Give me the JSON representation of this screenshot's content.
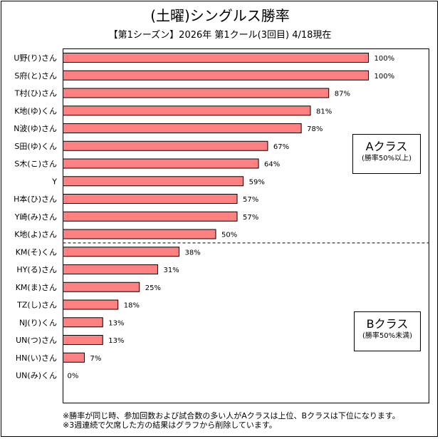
{
  "chart_data": {
    "type": "bar",
    "orientation": "horizontal",
    "title": "(土曜)シングルス勝率",
    "subtitle": "【第1シーズン】2026年 第1クール(3回目) 4/18現在",
    "xlabel": "",
    "ylabel": "",
    "xlim": [
      0,
      100
    ],
    "unit": "%",
    "bar_color": "#FF8080",
    "categories": [
      "U野(り)さん",
      "S府(と)さん",
      "T村(ひ)さん",
      "K地(ゆ)くん",
      "N波(ゆ)さん",
      "S田(ゆ)くん",
      "S木(こ)さん",
      "Y",
      "H本(ひ)さん",
      "Y崎(み)さん",
      "K地(よ)さん",
      "KM(そ)くん",
      "HY(る)さん",
      "KM(ま)さん",
      "TZ(し)さん",
      "NJ(り)くん",
      "UN(つ)さん",
      "HN(い)さん",
      "UN(み)くん"
    ],
    "values": [
      100,
      100,
      87,
      81,
      78,
      67,
      64,
      59,
      57,
      57,
      50,
      38,
      31,
      25,
      18,
      13,
      13,
      7,
      0
    ],
    "value_labels": [
      "100%",
      "100%",
      "87%",
      "81%",
      "78%",
      "67%",
      "64%",
      "59%",
      "57%",
      "57%",
      "50%",
      "38%",
      "31%",
      "25%",
      "18%",
      "13%",
      "13%",
      "7%",
      "0%"
    ],
    "divider_after_index": 10,
    "annotations": {
      "a_class": {
        "title": "Aクラス",
        "note": "(勝率50%以上)"
      },
      "b_class": {
        "title": "Bクラス",
        "note": "(勝率50%未満)"
      }
    },
    "notes": [
      "※勝率が同じ時、参加回数および試合数の多い人がAクラスは上位、Bクラスは下位になります。",
      "※3週連続で欠席した方の結果はグラフから削除しています。"
    ]
  }
}
